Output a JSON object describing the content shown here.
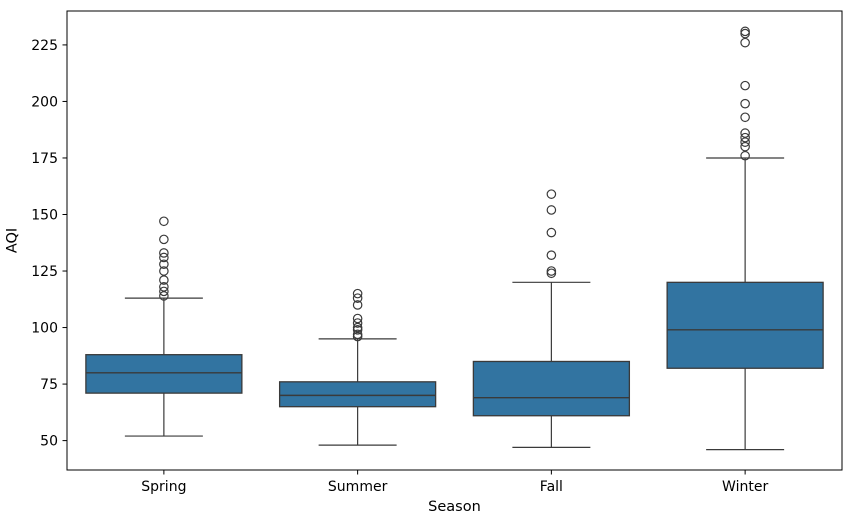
{
  "figure": {
    "background_color": "#ffffff"
  },
  "chart_data": {
    "type": "boxplot",
    "title": "",
    "xlabel": "Season",
    "ylabel": "AQI",
    "categories": [
      "Spring",
      "Summer",
      "Fall",
      "Winter"
    ],
    "ylim": [
      37,
      240
    ],
    "yticks": [
      50,
      75,
      100,
      125,
      150,
      175,
      200,
      225
    ],
    "grid": false,
    "legend": "none",
    "box_fill_color": "#3274a1",
    "box_line_color": "#3a3a3a",
    "spine_color": "#000000",
    "series": [
      {
        "category": "Spring",
        "whisker_low": 52,
        "q1": 71,
        "median": 80,
        "q3": 88,
        "whisker_high": 113,
        "outliers": [
          114,
          116,
          118,
          121,
          125,
          128,
          131,
          133,
          139,
          147
        ]
      },
      {
        "category": "Summer",
        "whisker_low": 48,
        "q1": 65,
        "median": 70,
        "q3": 76,
        "whisker_high": 95,
        "outliers": [
          96,
          97,
          99,
          100,
          102,
          104,
          110,
          113,
          115
        ]
      },
      {
        "category": "Fall",
        "whisker_low": 47,
        "q1": 61,
        "median": 69,
        "q3": 85,
        "whisker_high": 120,
        "outliers": [
          124,
          125,
          132,
          142,
          152,
          159
        ]
      },
      {
        "category": "Winter",
        "whisker_low": 46,
        "q1": 82,
        "median": 99,
        "q3": 120,
        "whisker_high": 175,
        "outliers": [
          176,
          180,
          182,
          184,
          186,
          193,
          199,
          207,
          226,
          230,
          231
        ]
      }
    ]
  }
}
